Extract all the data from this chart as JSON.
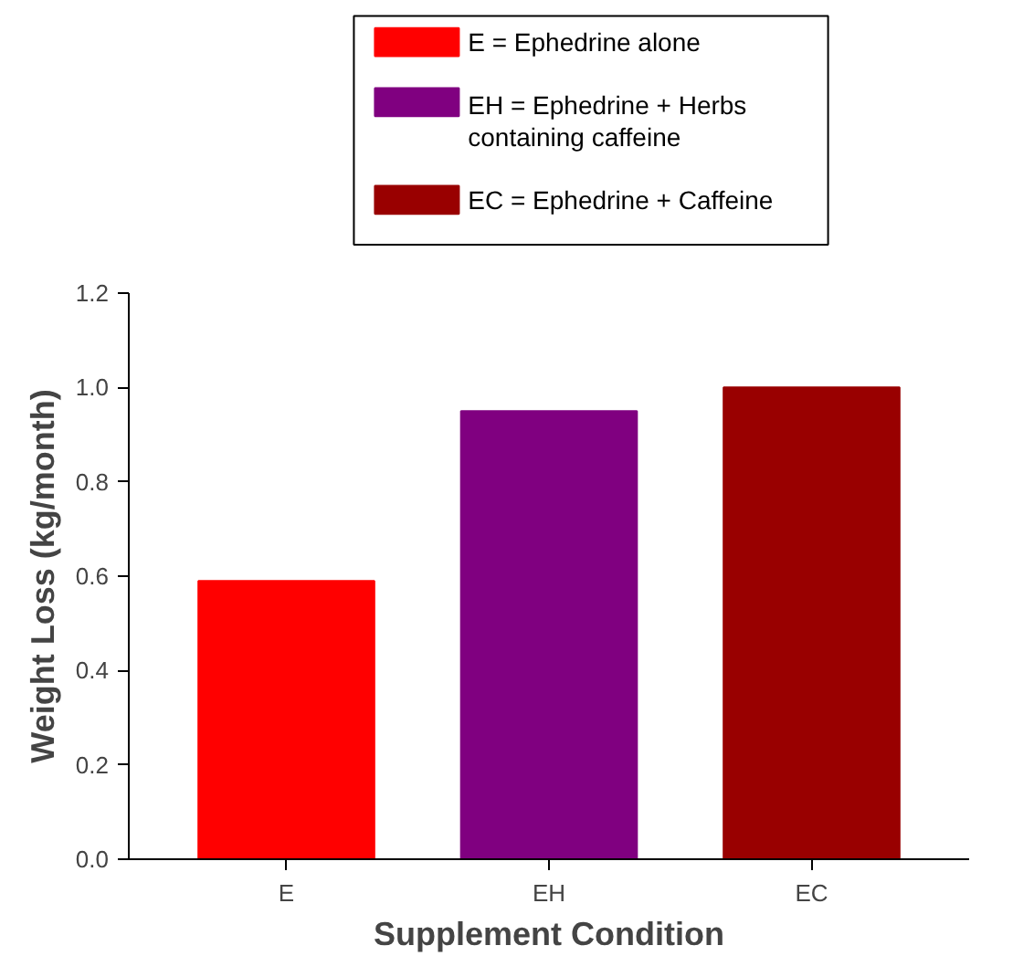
{
  "chart_data": {
    "type": "bar",
    "xlabel": "Supplement Condition",
    "ylabel": "Weight Loss (kg/month)",
    "categories": [
      "E",
      "EH",
      "EC"
    ],
    "series": [
      {
        "name": "E = Ephedrine alone",
        "color": "#ff0000",
        "values": [
          0.59,
          null,
          null
        ]
      },
      {
        "name": "EH = Ephedrine + Herbs\ncontaining caffeine",
        "color": "#800080",
        "values": [
          null,
          0.95,
          null
        ]
      },
      {
        "name": "EC = Ephedrine + Caffeine",
        "color": "#990000",
        "values": [
          null,
          null,
          1.0
        ]
      }
    ],
    "ylim": [
      0,
      1.2
    ],
    "yticks": [
      {
        "value": 0,
        "label": "0.0"
      },
      0.2,
      0.4,
      0.6,
      0.8,
      {
        "value": 1,
        "label": "1.0"
      },
      1.2
    ],
    "grid": false,
    "legend": "top"
  }
}
